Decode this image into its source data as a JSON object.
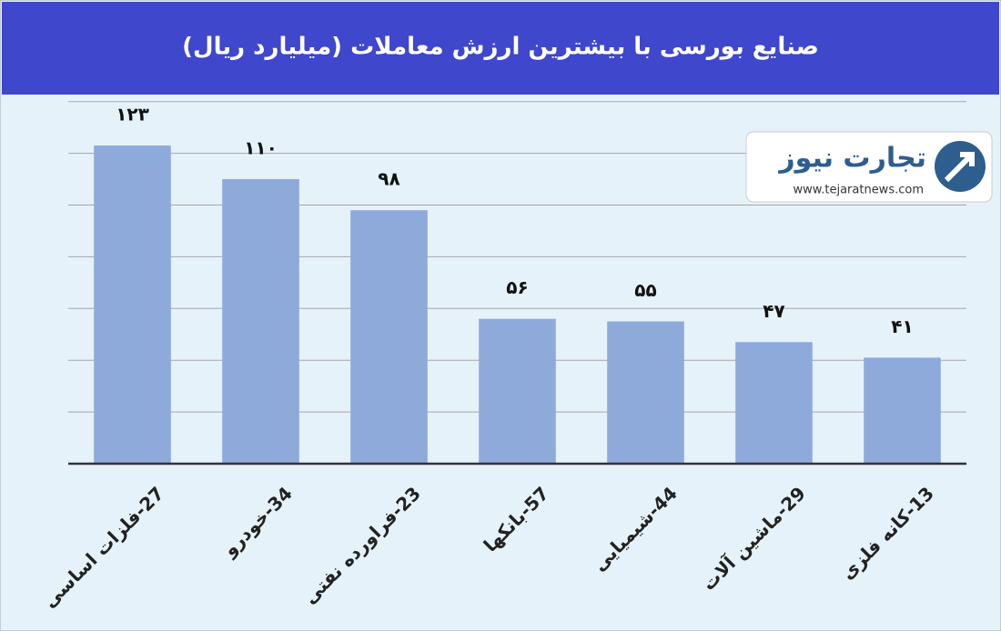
{
  "chart_data": {
    "type": "bar",
    "title": "صنایع بورسی با بیشترین ارزش معاملات  (میلیارد ریال)",
    "categories": [
      "27-فلزات اساسی",
      "34-خودرو",
      "23-فراورده نفتی",
      "57-بانکها",
      "44-شیمیایی",
      "29-ماشین آلات",
      "13-کانه فلزی"
    ],
    "values": [
      123,
      110,
      98,
      56,
      55,
      47,
      41
    ],
    "value_labels": [
      "۱۲۳",
      "۱۱۰",
      "۹۸",
      "۵۶",
      "۵۵",
      "۴۷",
      "۴۱"
    ],
    "color": "#8eaadb",
    "ylim": [
      0,
      142
    ],
    "yticks": [
      0,
      20,
      40,
      60,
      80,
      100,
      120,
      140
    ],
    "grid": true
  },
  "logo": {
    "name": "تجارت نیوز",
    "url": "www.tejaratnews.com"
  }
}
